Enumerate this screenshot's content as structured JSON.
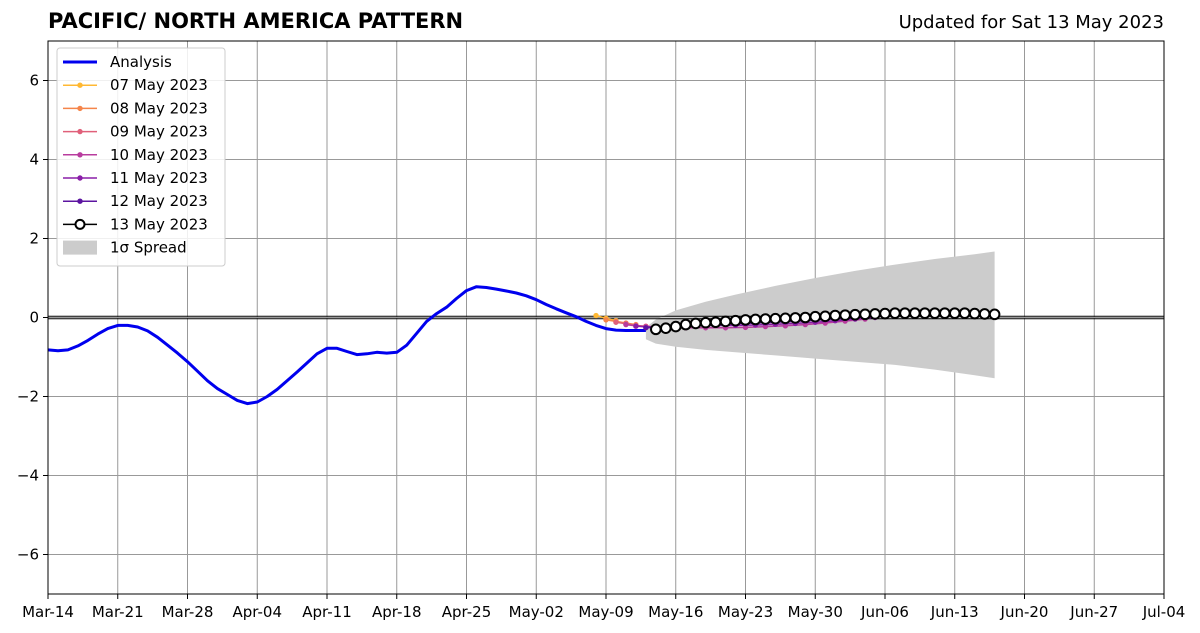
{
  "chart_data": {
    "type": "line",
    "title": "PACIFIC/ NORTH AMERICA PATTERN",
    "subtitle": "Updated for Sat 13 May 2023",
    "xlabel": "",
    "ylabel": "",
    "xlim": [
      "2023-03-14",
      "2023-07-04"
    ],
    "ylim": [
      -7,
      7
    ],
    "grid": true,
    "legend_position": "top-left",
    "x_tick_labels": [
      "Mar-14",
      "Mar-21",
      "Mar-28",
      "Apr-04",
      "Apr-11",
      "Apr-18",
      "Apr-25",
      "May-02",
      "May-09",
      "May-16",
      "May-23",
      "May-30",
      "Jun-06",
      "Jun-13",
      "Jun-20",
      "Jun-27",
      "Jul-04"
    ],
    "x_tick_dates": [
      "2023-03-14",
      "2023-03-21",
      "2023-03-28",
      "2023-04-04",
      "2023-04-11",
      "2023-04-18",
      "2023-04-25",
      "2023-05-02",
      "2023-05-09",
      "2023-05-16",
      "2023-05-23",
      "2023-05-30",
      "2023-06-06",
      "2023-06-13",
      "2023-06-20",
      "2023-06-27",
      "2023-07-04"
    ],
    "y_ticks": [
      -6,
      -4,
      -2,
      0,
      2,
      4,
      6
    ],
    "y_tick_labels": [
      "−6",
      "−4",
      "−2",
      "0",
      "2",
      "4",
      "6"
    ],
    "analysis": {
      "name": "Analysis",
      "color": "#0000ee",
      "x": [
        "2023-03-14",
        "2023-03-15",
        "2023-03-16",
        "2023-03-17",
        "2023-03-18",
        "2023-03-19",
        "2023-03-20",
        "2023-03-21",
        "2023-03-22",
        "2023-03-23",
        "2023-03-24",
        "2023-03-25",
        "2023-03-26",
        "2023-03-27",
        "2023-03-28",
        "2023-03-29",
        "2023-03-30",
        "2023-03-31",
        "2023-04-01",
        "2023-04-02",
        "2023-04-03",
        "2023-04-04",
        "2023-04-05",
        "2023-04-06",
        "2023-04-07",
        "2023-04-08",
        "2023-04-09",
        "2023-04-10",
        "2023-04-11",
        "2023-04-12",
        "2023-04-13",
        "2023-04-14",
        "2023-04-15",
        "2023-04-16",
        "2023-04-17",
        "2023-04-18",
        "2023-04-19",
        "2023-04-20",
        "2023-04-21",
        "2023-04-22",
        "2023-04-23",
        "2023-04-24",
        "2023-04-25",
        "2023-04-26",
        "2023-04-27",
        "2023-04-28",
        "2023-04-29",
        "2023-04-30",
        "2023-05-01",
        "2023-05-02",
        "2023-05-03",
        "2023-05-04",
        "2023-05-05",
        "2023-05-06",
        "2023-05-07",
        "2023-05-08",
        "2023-05-09",
        "2023-05-10",
        "2023-05-11",
        "2023-05-12",
        "2023-05-13"
      ],
      "values": [
        -0.82,
        -0.84,
        -0.82,
        -0.72,
        -0.58,
        -0.42,
        -0.28,
        -0.2,
        -0.2,
        -0.24,
        -0.34,
        -0.5,
        -0.7,
        -0.9,
        -1.12,
        -1.36,
        -1.6,
        -1.8,
        -1.95,
        -2.1,
        -2.18,
        -2.14,
        -2.0,
        -1.82,
        -1.6,
        -1.38,
        -1.15,
        -0.92,
        -0.78,
        -0.78,
        -0.86,
        -0.94,
        -0.92,
        -0.88,
        -0.9,
        -0.88,
        -0.7,
        -0.4,
        -0.1,
        0.1,
        0.26,
        0.48,
        0.68,
        0.78,
        0.76,
        0.72,
        0.67,
        0.62,
        0.55,
        0.45,
        0.33,
        0.22,
        0.12,
        0.02,
        -0.1,
        -0.2,
        -0.28,
        -0.32,
        -0.33,
        -0.33,
        -0.33
      ]
    },
    "forecasts": [
      {
        "name": "07 May 2023",
        "color": "#ffb833",
        "x": [
          "2023-05-08",
          "2023-05-09",
          "2023-05-10"
        ],
        "values": [
          0.05,
          -0.02,
          -0.08
        ]
      },
      {
        "name": "08 May 2023",
        "color": "#f5854a",
        "x": [
          "2023-05-09",
          "2023-05-10",
          "2023-05-11",
          "2023-05-12"
        ],
        "values": [
          -0.06,
          -0.1,
          -0.14,
          -0.18
        ]
      },
      {
        "name": "09 May 2023",
        "color": "#e0607a",
        "x": [
          "2023-05-10",
          "2023-05-11",
          "2023-05-12",
          "2023-05-13",
          "2023-05-14"
        ],
        "values": [
          -0.12,
          -0.16,
          -0.2,
          -0.22,
          -0.24
        ]
      },
      {
        "name": "10 May 2023",
        "color": "#b83c9e",
        "x": [
          "2023-05-11",
          "2023-05-13",
          "2023-05-15",
          "2023-05-17",
          "2023-05-19",
          "2023-05-21",
          "2023-05-23",
          "2023-05-25",
          "2023-05-27",
          "2023-05-29",
          "2023-05-31",
          "2023-06-02",
          "2023-06-04"
        ],
        "values": [
          -0.18,
          -0.24,
          -0.26,
          -0.26,
          -0.26,
          -0.26,
          -0.25,
          -0.23,
          -0.21,
          -0.18,
          -0.14,
          -0.09,
          -0.04
        ]
      },
      {
        "name": "11 May 2023",
        "color": "#8a1ea8",
        "x": [
          "2023-05-12",
          "2023-05-14",
          "2023-05-16",
          "2023-05-18",
          "2023-05-20",
          "2023-05-22",
          "2023-05-24",
          "2023-05-26",
          "2023-05-28",
          "2023-05-30",
          "2023-06-01",
          "2023-06-03",
          "2023-06-05"
        ],
        "values": [
          -0.22,
          -0.24,
          -0.22,
          -0.2,
          -0.2,
          -0.2,
          -0.19,
          -0.17,
          -0.15,
          -0.12,
          -0.08,
          -0.04,
          0.0
        ]
      },
      {
        "name": "12 May 2023",
        "color": "#5c14a0",
        "x": [
          "2023-05-13",
          "2023-05-15",
          "2023-05-17",
          "2023-05-19",
          "2023-05-21",
          "2023-05-23",
          "2023-05-25",
          "2023-05-27",
          "2023-05-29",
          "2023-05-31",
          "2023-06-02",
          "2023-06-04",
          "2023-06-06"
        ],
        "values": [
          -0.26,
          -0.24,
          -0.2,
          -0.18,
          -0.16,
          -0.15,
          -0.13,
          -0.11,
          -0.08,
          -0.05,
          -0.02,
          0.02,
          0.04
        ]
      }
    ],
    "latest_forecast": {
      "name": "13 May 2023",
      "color": "#000000",
      "x": [
        "2023-05-14",
        "2023-05-15",
        "2023-05-16",
        "2023-05-17",
        "2023-05-18",
        "2023-05-19",
        "2023-05-20",
        "2023-05-21",
        "2023-05-22",
        "2023-05-23",
        "2023-05-24",
        "2023-05-25",
        "2023-05-26",
        "2023-05-27",
        "2023-05-28",
        "2023-05-29",
        "2023-05-30",
        "2023-05-31",
        "2023-06-01",
        "2023-06-02",
        "2023-06-03",
        "2023-06-04",
        "2023-06-05",
        "2023-06-06",
        "2023-06-07",
        "2023-06-08",
        "2023-06-09",
        "2023-06-10",
        "2023-06-11",
        "2023-06-12",
        "2023-06-13",
        "2023-06-14",
        "2023-06-15",
        "2023-06-16",
        "2023-06-17"
      ],
      "values": [
        -0.3,
        -0.27,
        -0.23,
        -0.18,
        -0.15,
        -0.13,
        -0.12,
        -0.1,
        -0.08,
        -0.06,
        -0.05,
        -0.04,
        -0.03,
        -0.02,
        -0.01,
        0.0,
        0.02,
        0.03,
        0.05,
        0.06,
        0.07,
        0.08,
        0.09,
        0.1,
        0.11,
        0.11,
        0.11,
        0.11,
        0.11,
        0.11,
        0.11,
        0.11,
        0.1,
        0.09,
        0.08
      ]
    },
    "spread": {
      "name": "1σ Spread",
      "color": "#cccccc",
      "x": [
        "2023-05-13",
        "2023-05-14",
        "2023-05-16",
        "2023-05-19",
        "2023-05-22",
        "2023-05-26",
        "2023-05-30",
        "2023-06-03",
        "2023-06-07",
        "2023-06-11",
        "2023-06-15",
        "2023-06-17"
      ],
      "upper": [
        -0.25,
        -0.05,
        0.18,
        0.4,
        0.58,
        0.8,
        1.0,
        1.18,
        1.34,
        1.48,
        1.6,
        1.67
      ],
      "lower": [
        -0.55,
        -0.66,
        -0.74,
        -0.82,
        -0.88,
        -0.96,
        -1.04,
        -1.12,
        -1.2,
        -1.32,
        -1.46,
        -1.54
      ]
    },
    "legend": [
      "Analysis",
      "07 May 2023",
      "08 May 2023",
      "09 May 2023",
      "10 May 2023",
      "11 May 2023",
      "12 May 2023",
      "13 May 2023",
      "1σ Spread"
    ]
  }
}
